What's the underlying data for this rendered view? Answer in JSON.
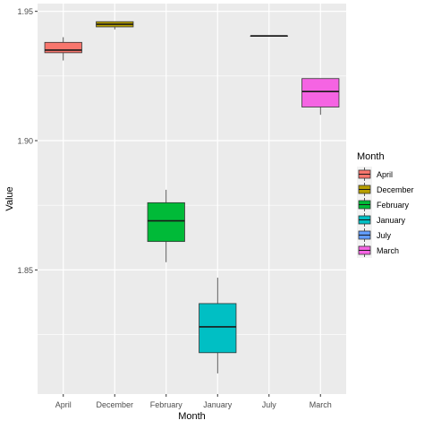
{
  "chart_data": {
    "type": "boxplot",
    "title": "",
    "xlabel": "Month",
    "ylabel": "Value",
    "ylim": [
      1.802,
      1.953
    ],
    "yticks": [
      1.85,
      1.9,
      1.95
    ],
    "ytick_labels": [
      "1.85",
      "1.90",
      "1.95"
    ],
    "categories": [
      "April",
      "December",
      "February",
      "January",
      "July",
      "March"
    ],
    "boxes": [
      {
        "category": "April",
        "min": 1.931,
        "q1": 1.934,
        "median": 1.935,
        "q3": 1.938,
        "max": 1.94,
        "color": "#F8766D"
      },
      {
        "category": "December",
        "min": 1.943,
        "q1": 1.944,
        "median": 1.945,
        "q3": 1.946,
        "max": 1.946,
        "color": "#B79F00"
      },
      {
        "category": "February",
        "min": 1.853,
        "q1": 1.861,
        "median": 1.869,
        "q3": 1.876,
        "max": 1.881,
        "color": "#00BA38"
      },
      {
        "category": "January",
        "min": 1.81,
        "q1": 1.818,
        "median": 1.828,
        "q3": 1.837,
        "max": 1.847,
        "color": "#00BFC4"
      },
      {
        "category": "July",
        "min": 1.9405,
        "q1": 1.9405,
        "median": 1.9405,
        "q3": 1.9405,
        "max": 1.9405,
        "color": "#619CFF"
      },
      {
        "category": "March",
        "min": 1.91,
        "q1": 1.913,
        "median": 1.919,
        "q3": 1.924,
        "max": 1.924,
        "color": "#F564E3"
      }
    ],
    "legend": {
      "title": "Month",
      "position": "right",
      "entries": [
        "April",
        "December",
        "February",
        "January",
        "July",
        "March"
      ]
    },
    "grid": true,
    "panel_background": "#EBEBEB",
    "grid_color": "#FFFFFF"
  }
}
